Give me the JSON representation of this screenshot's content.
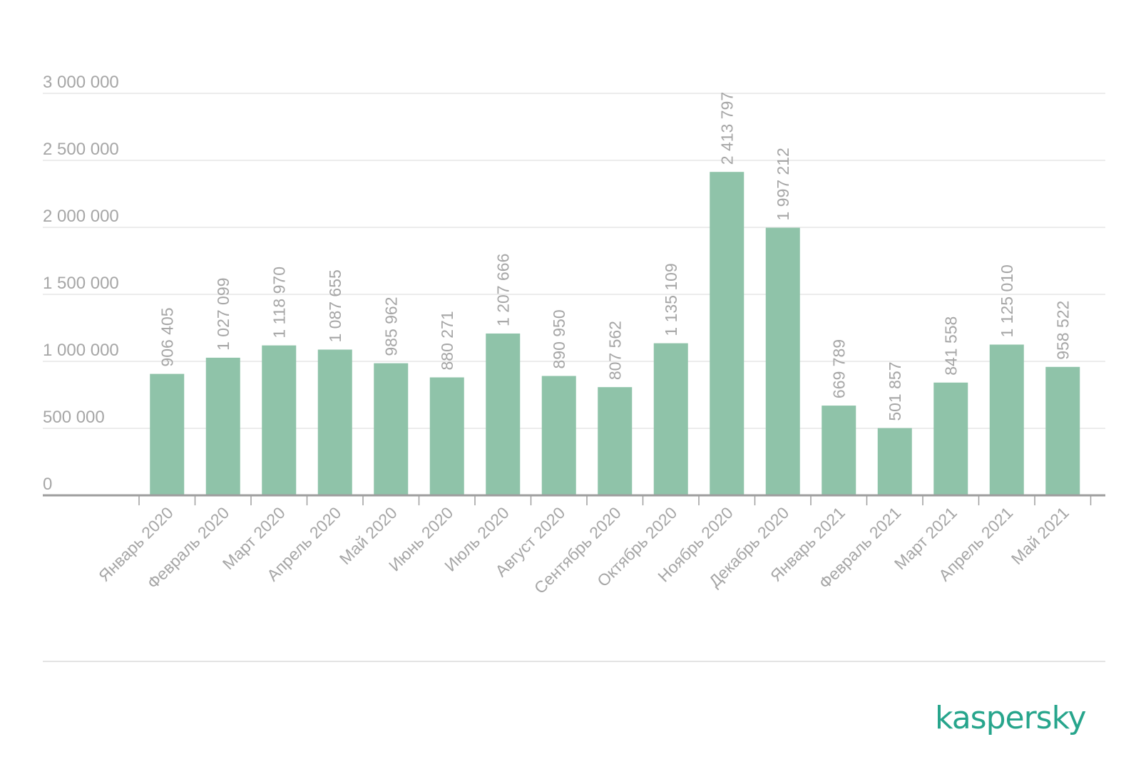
{
  "chart_data": {
    "type": "bar",
    "categories": [
      "Январь 2020",
      "Февраль 2020",
      "Март 2020",
      "Апрель 2020",
      "Май 2020",
      "Июнь 2020",
      "Июль 2020",
      "Август 2020",
      "Сентябрь 2020",
      "Октябрь 2020",
      "Ноябрь 2020",
      "Декабрь 2020",
      "Январь 2021",
      "Февраль 2021",
      "Март 2021",
      "Апрель 2021",
      "Май 2021"
    ],
    "values": [
      906405,
      1027099,
      1118970,
      1087655,
      985962,
      880271,
      1207666,
      890950,
      807562,
      1135109,
      2413797,
      1997212,
      669789,
      501857,
      841558,
      1125010,
      958522
    ],
    "value_labels": [
      "906 405",
      "1 027 099",
      "1 118 970",
      "1 087 655",
      "985 962",
      "880 271",
      "1 207 666",
      "890 950",
      "807 562",
      "1 135 109",
      "2 413 797",
      "1 997 212",
      "669 789",
      "501 857",
      "841 558",
      "1 125 010",
      "958 522"
    ],
    "yticks": [
      0,
      500000,
      1000000,
      1500000,
      2000000,
      2500000,
      3000000
    ],
    "ytick_labels": [
      "0",
      "500 000",
      "1 000 000",
      "1 500 000",
      "2 000 000",
      "2 500 000",
      "3 000 000"
    ],
    "ylim": [
      0,
      3000000
    ],
    "title": "",
    "xlabel": "",
    "ylabel": "",
    "grid": true,
    "bar_color": "#8fc3a9",
    "text_color": "#a6a6a6",
    "gridline_color": "#e6e6e6",
    "axis_color": "#9e9e9e"
  },
  "logo": {
    "text": "kaspersky",
    "color": "#27a58c"
  }
}
